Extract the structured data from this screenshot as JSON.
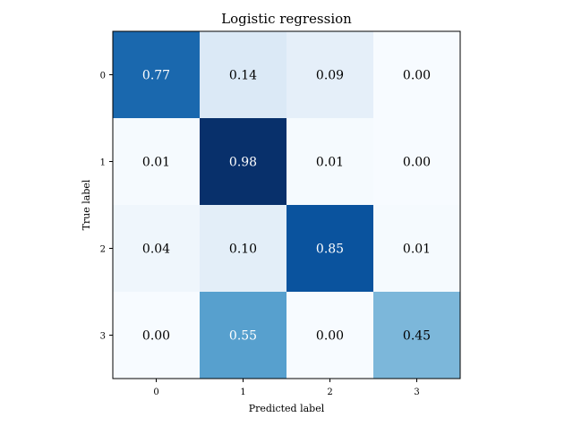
{
  "chart_data": {
    "type": "heatmap",
    "title": "Logistic regression",
    "xlabel": "Predicted label",
    "ylabel": "True label",
    "x_categories": [
      "0",
      "1",
      "2",
      "3"
    ],
    "y_categories": [
      "0",
      "1",
      "2",
      "3"
    ],
    "values": [
      [
        0.77,
        0.14,
        0.09,
        0.0
      ],
      [
        0.01,
        0.98,
        0.01,
        0.0
      ],
      [
        0.04,
        0.1,
        0.85,
        0.01
      ],
      [
        0.0,
        0.55,
        0.0,
        0.45
      ]
    ],
    "colormap": "Blues",
    "text_color_light": "#ffffff",
    "text_color_dark": "#000000"
  }
}
